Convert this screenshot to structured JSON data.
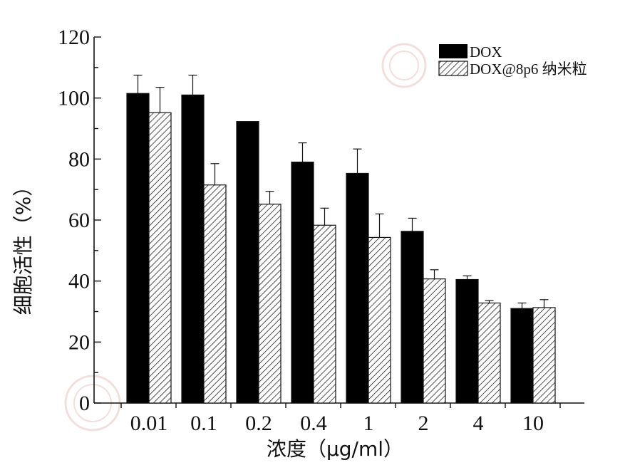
{
  "chart_data": {
    "type": "bar",
    "title": "",
    "xlabel": "浓度（μg/ml）",
    "ylabel": "细胞活性（%）",
    "ylim": [
      0,
      120
    ],
    "yticks": [
      "0",
      "20",
      "40",
      "60",
      "80",
      "100",
      "120"
    ],
    "categories": [
      "0.01",
      "0.1",
      "0.2",
      "0.4",
      "1",
      "2",
      "4",
      "10"
    ],
    "series": [
      {
        "name": "DOX",
        "fill": "#000000",
        "values": [
          101.5,
          101,
          92.3,
          79,
          75.3,
          56.3,
          40.5,
          31
        ],
        "errors": [
          6,
          6.5,
          0,
          6.3,
          8,
          4.3,
          1.2,
          1.8
        ]
      },
      {
        "name": "DOX@8p6 纳米粒",
        "fill": "hatch",
        "values": [
          95.2,
          71.5,
          65.2,
          58.3,
          54.3,
          40.7,
          32.8,
          31.3
        ],
        "errors": [
          8.3,
          7,
          4.2,
          5.6,
          7.7,
          3,
          0.8,
          2.6
        ]
      }
    ],
    "legend_position": "top-right",
    "grid": false
  },
  "colors": {
    "bar_dark": "#000000",
    "hatch_line": "#222222",
    "axis": "#111111",
    "watermark": "#c0504d"
  }
}
